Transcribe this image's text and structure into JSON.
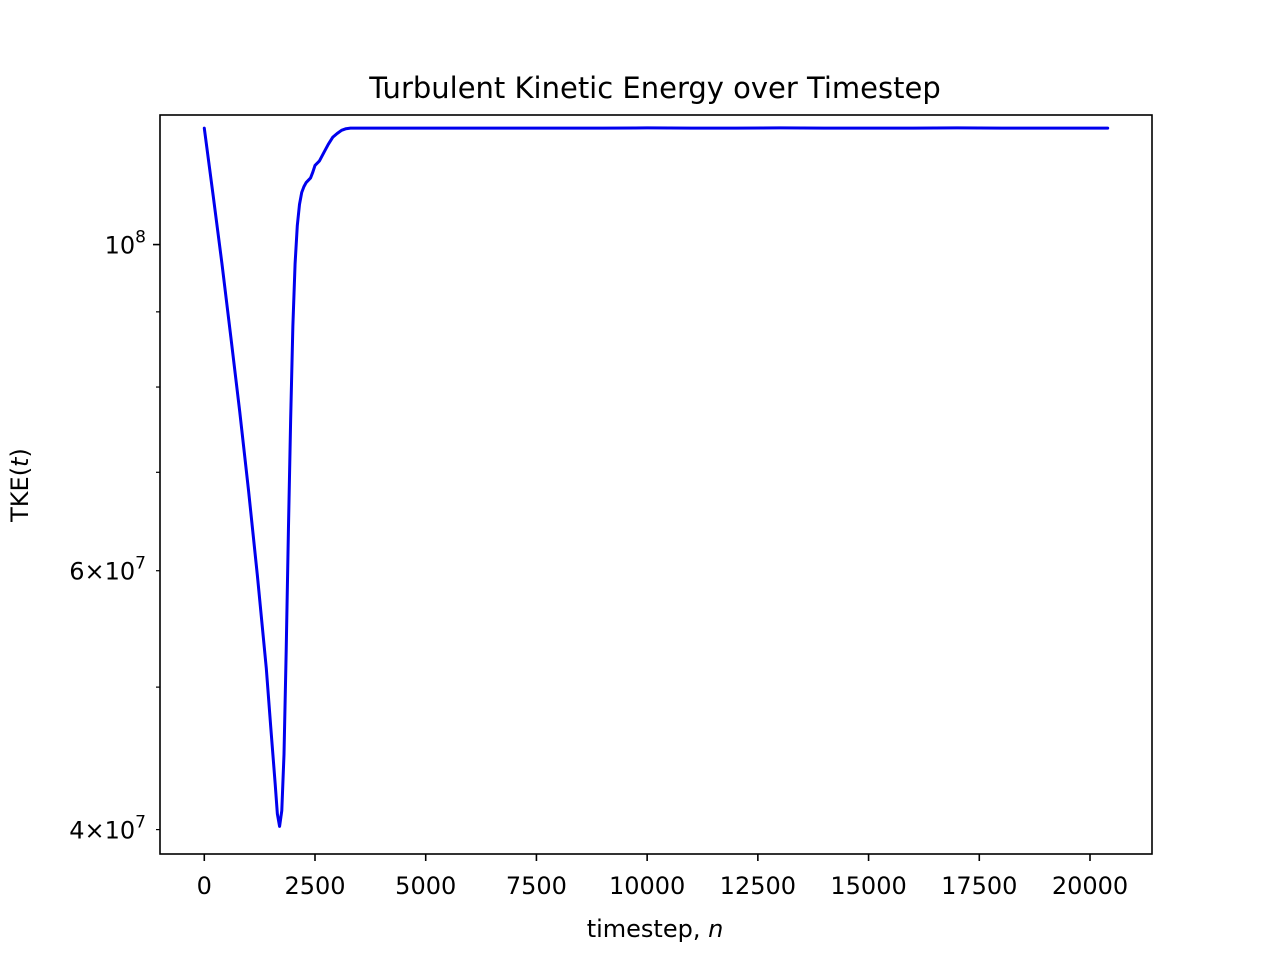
{
  "chart_data": {
    "type": "line",
    "title": "Turbulent Kinetic Energy over Timestep",
    "xlabel": "timestep, ",
    "xlabel_var": "n",
    "ylabel": "TKE(",
    "ylabel_var": "t",
    "ylabel_end": ")",
    "xscale": "linear",
    "yscale": "log",
    "xlim": [
      -1000,
      21400
    ],
    "ylim": [
      38500000,
      122500000
    ],
    "grid": false,
    "xticks": [
      {
        "value": 0,
        "label": "0"
      },
      {
        "value": 2500,
        "label": "2500"
      },
      {
        "value": 5000,
        "label": "5000"
      },
      {
        "value": 7500,
        "label": "7500"
      },
      {
        "value": 10000,
        "label": "10000"
      },
      {
        "value": 12500,
        "label": "12500"
      },
      {
        "value": 15000,
        "label": "15000"
      },
      {
        "value": 17500,
        "label": "17500"
      },
      {
        "value": 20000,
        "label": "20000"
      }
    ],
    "yticks_major": [
      {
        "value": 100000000,
        "mantissa": "",
        "base": "10",
        "exp": "8"
      }
    ],
    "yticks_minor_labeled": [
      {
        "value": 40000000,
        "mantissa": "4",
        "base": "10",
        "exp": "7"
      },
      {
        "value": 60000000,
        "mantissa": "6",
        "base": "10",
        "exp": "7"
      }
    ],
    "yticks_minor_unlabeled": [
      50000000,
      70000000,
      80000000,
      90000000
    ],
    "series": [
      {
        "color": "#0000ee",
        "x": [
          0,
          200,
          400,
          600,
          800,
          1000,
          1200,
          1400,
          1500,
          1600,
          1650,
          1700,
          1750,
          1800,
          1850,
          1900,
          1950,
          2000,
          2050,
          2100,
          2150,
          2200,
          2250,
          2300,
          2400,
          2450,
          2500,
          2600,
          2700,
          2800,
          2900,
          3000,
          3100,
          3200,
          3300,
          3500,
          4000,
          5000,
          6000,
          7000,
          8000,
          9000,
          10000,
          11000,
          12000,
          13000,
          14000,
          15000,
          16000,
          17000,
          18000,
          19000,
          20000,
          20400
        ],
        "y": [
          120000000,
          108000000,
          97000000,
          86500000,
          77000000,
          68000000,
          59500000,
          51500000,
          47000000,
          43000000,
          41000000,
          40200000,
          41200000,
          45000000,
          53000000,
          64000000,
          76000000,
          88000000,
          97000000,
          103000000,
          106500000,
          108500000,
          109500000,
          110200000,
          111000000,
          112000000,
          113200000,
          114000000,
          115500000,
          117000000,
          118300000,
          119000000,
          119600000,
          119900000,
          120000000,
          120000000,
          120000000,
          120000000,
          120000000,
          120000000,
          120000000,
          120000000,
          120050000,
          120000000,
          120000000,
          120050000,
          120000000,
          120000000,
          120000000,
          120050000,
          120000000,
          120000000,
          120000000,
          120000000
        ]
      }
    ]
  }
}
